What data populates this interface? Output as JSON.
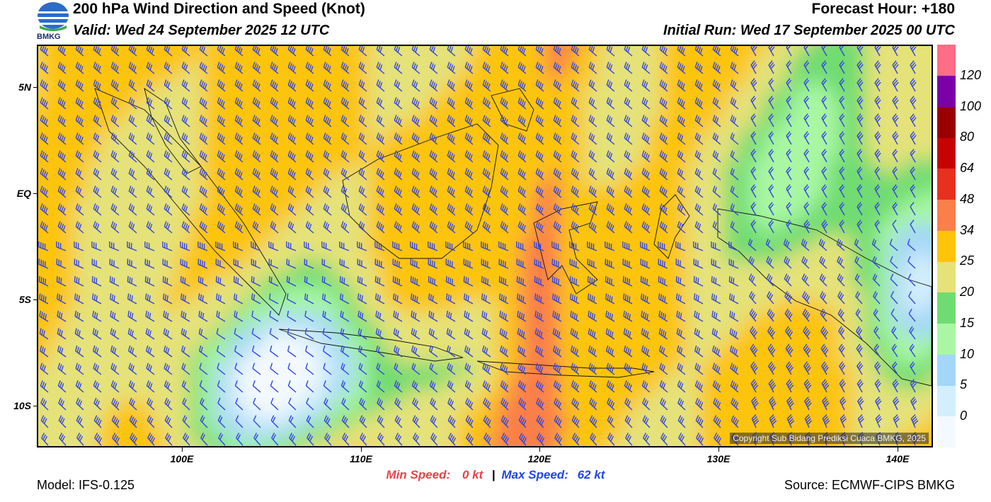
{
  "header": {
    "title": "200 hPa Wind Direction and Speed (Knot)",
    "valid": "Valid: Wed 24 September 2025 12 UTC",
    "forecast_hour": "Forecast Hour: +180",
    "initial_run": "Initial Run: Wed 17 September 2025 00 UTC",
    "logo_text": "BMKG"
  },
  "map": {
    "lat_labels": [
      "5N",
      "EQ",
      "5S",
      "10S"
    ],
    "lon_labels": [
      "100E",
      "110E",
      "120E",
      "130E",
      "140E"
    ],
    "copyright": "Copyright Sub Bidang Prediksi Cuaca BMKG, 2025",
    "barb_color": "#3344e0"
  },
  "colorbar": {
    "labels": [
      "0",
      "5",
      "10",
      "15",
      "20",
      "25",
      "34",
      "48",
      "64",
      "80",
      "100",
      "120"
    ],
    "colors": [
      "#f4f9ff",
      "#d3eefc",
      "#a3d6f7",
      "#a9f7a3",
      "#6fdc71",
      "#e4e279",
      "#fdc40a",
      "#fb7f4a",
      "#e8301f",
      "#c70302",
      "#9b0000",
      "#7a00a8",
      "#ff6d86"
    ]
  },
  "stats": {
    "min_label": "Min Speed:",
    "min_value": "0 kt",
    "separator": "|",
    "max_label": "Max Speed:",
    "max_value": "62 kt"
  },
  "footer": {
    "model": "Model: IFS-0.125",
    "source": "Source: ECMWF-CIPS BMKG"
  }
}
